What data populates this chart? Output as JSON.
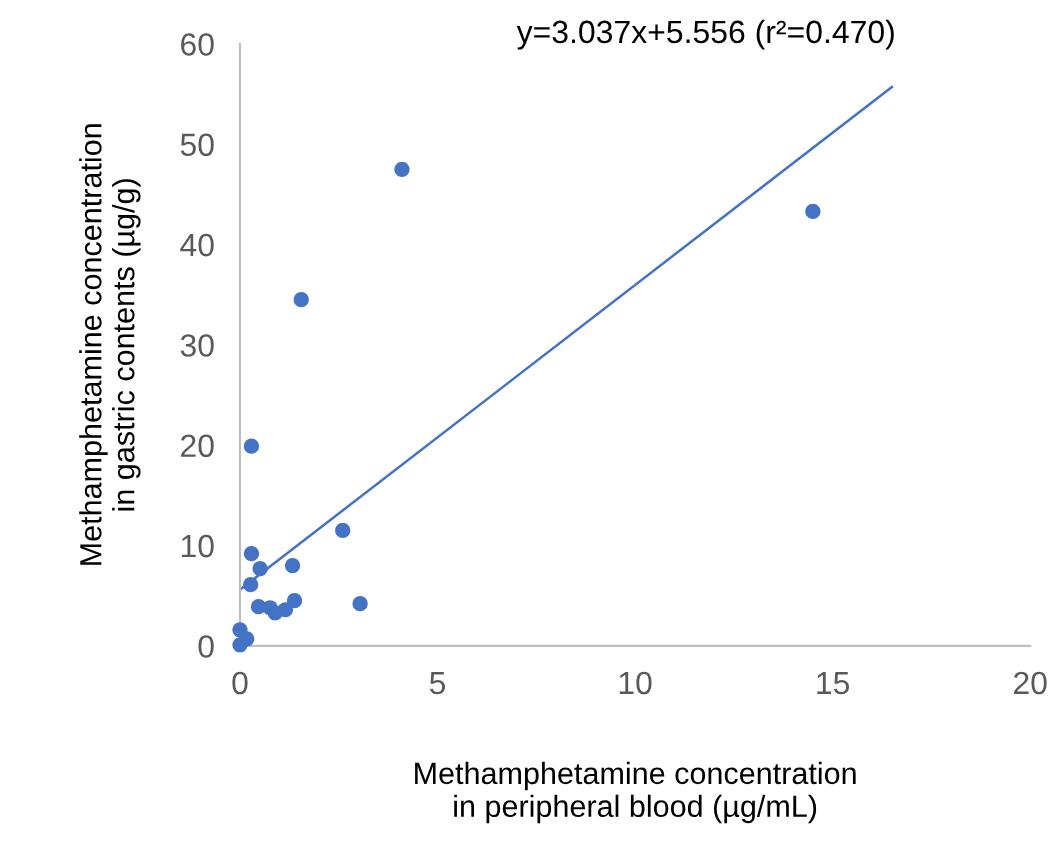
{
  "chart_data": {
    "type": "scatter",
    "xlabel": "Methamphetamine concentration\nin peripheral blood (µg/mL)",
    "ylabel": "Methamphetamine concentration\nin gastric contents (µg/g)",
    "annotations": [
      "y=3.037x+5.556 (r²=0.470)"
    ],
    "xlim": [
      0,
      20
    ],
    "xticks": [
      0,
      5,
      10,
      15,
      20
    ],
    "ylim": [
      0,
      60
    ],
    "yticks": [
      0,
      10,
      20,
      30,
      40,
      50,
      60
    ],
    "grid": false,
    "marker": "circle",
    "series": [
      {
        "color": "#4472c4",
        "x": [
          4.1,
          14.5,
          1.55,
          0.29,
          2.6,
          0.29,
          0.51,
          1.33,
          0.27,
          3.04,
          0.47,
          0.76,
          0.89,
          1.15,
          1.38,
          0.0,
          0.17,
          0.0
        ],
        "values": [
          47.5,
          43.3,
          34.5,
          19.9,
          11.5,
          9.2,
          7.7,
          8.0,
          6.1,
          4.2,
          3.9,
          3.8,
          3.3,
          3.6,
          4.5,
          1.6,
          0.7,
          0.1
        ]
      },
      {
        "type": "line",
        "marker": "none",
        "color": "#4472c4",
        "x": [
          0,
          16.5
        ],
        "values": [
          5.6,
          55.7
        ]
      }
    ]
  }
}
